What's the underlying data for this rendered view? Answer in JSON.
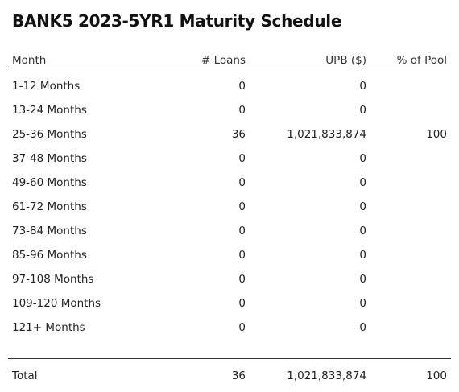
{
  "title": "BANK5 2023-5YR1 Maturity Schedule",
  "columns": [
    "Month",
    "# Loans",
    "UPB ($)",
    "% of Pool"
  ],
  "rows": [
    {
      "month": "1-12 Months",
      "loans": "0",
      "upb": "0",
      "pct": ""
    },
    {
      "month": "13-24 Months",
      "loans": "0",
      "upb": "0",
      "pct": ""
    },
    {
      "month": "25-36 Months",
      "loans": "36",
      "upb": "1,021,833,874",
      "pct": "100"
    },
    {
      "month": "37-48 Months",
      "loans": "0",
      "upb": "0",
      "pct": ""
    },
    {
      "month": "49-60 Months",
      "loans": "0",
      "upb": "0",
      "pct": ""
    },
    {
      "month": "61-72 Months",
      "loans": "0",
      "upb": "0",
      "pct": ""
    },
    {
      "month": "73-84 Months",
      "loans": "0",
      "upb": "0",
      "pct": ""
    },
    {
      "month": "85-96 Months",
      "loans": "0",
      "upb": "0",
      "pct": ""
    },
    {
      "month": "97-108 Months",
      "loans": "0",
      "upb": "0",
      "pct": ""
    },
    {
      "month": "109-120 Months",
      "loans": "0",
      "upb": "0",
      "pct": ""
    },
    {
      "month": "121+ Months",
      "loans": "0",
      "upb": "0",
      "pct": ""
    }
  ],
  "total": {
    "label": "Total",
    "loans": "36",
    "upb": "1,021,833,874",
    "pct": "100"
  }
}
